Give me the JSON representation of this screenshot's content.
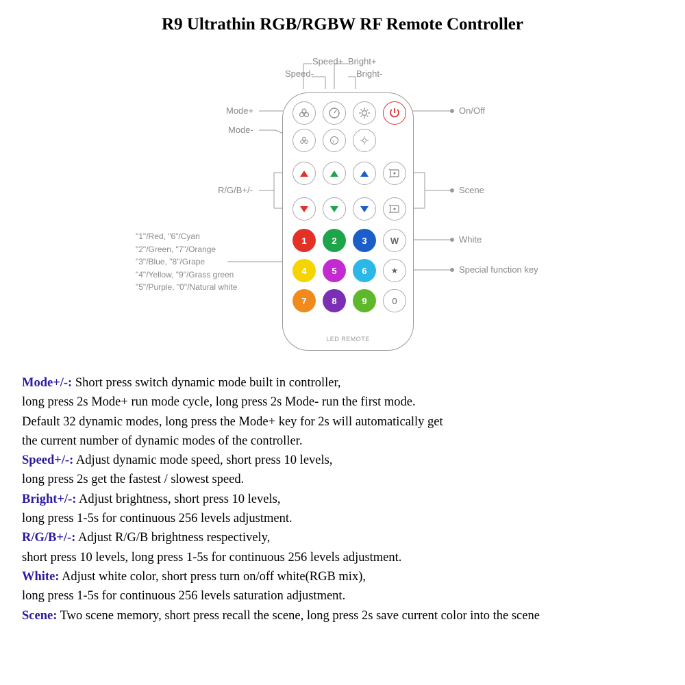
{
  "title": "R9 Ultrathin RGB/RGBW RF Remote Controller",
  "remote_footer": "LED REMOTE",
  "annotations": {
    "speed_plus": "Speed+",
    "speed_minus": "Speed-",
    "bright_plus": "Bright+",
    "bright_minus": "Bright-",
    "mode_plus": "Mode+",
    "mode_minus": "Mode-",
    "rgb": "R/G/B+/-",
    "on_off": "On/Off",
    "scene": "Scene",
    "white": "White",
    "special": "Special function key"
  },
  "color_legend": [
    "\"1\"/Red,    \"6\"/Cyan",
    "\"2\"/Green, \"7\"/Orange",
    "\"3\"/Blue,   \"8\"/Grape",
    "\"4\"/Yellow, \"9\"/Grass green",
    "\"5\"/Purple, \"0\"/Natural white"
  ],
  "color_buttons": [
    {
      "n": "1",
      "c": "#e33126"
    },
    {
      "n": "2",
      "c": "#1ea44a"
    },
    {
      "n": "3",
      "c": "#1a5fc9"
    },
    {
      "n": "4",
      "c": "#f5d400"
    },
    {
      "n": "5",
      "c": "#c22bd0"
    },
    {
      "n": "6",
      "c": "#2bb7e8"
    },
    {
      "n": "7",
      "c": "#f08a1d"
    },
    {
      "n": "8",
      "c": "#7a2fb5"
    },
    {
      "n": "9",
      "c": "#5fb82c"
    }
  ],
  "white_btn": "W",
  "star_btn": "★",
  "zero_btn": "0",
  "line_color": "#999999",
  "descriptions": [
    {
      "key": "Mode+/-:",
      "text": " Short press switch dynamic mode built in controller,",
      "cont": [
        "long press 2s Mode+ run mode cycle, long press 2s Mode- run the first mode.",
        "Default 32 dynamic modes, long press the Mode+ key for 2s will automatically get",
        "the current number of dynamic modes of the controller."
      ]
    },
    {
      "key": "Speed+/-:",
      "text": " Adjust dynamic mode speed, short press 10 levels,",
      "cont": [
        "long press 2s get the fastest / slowest speed."
      ]
    },
    {
      "key": "Bright+/-:",
      "text": " Adjust brightness, short press 10 levels,",
      "cont": [
        "long press 1-5s for continuous 256 levels adjustment."
      ]
    },
    {
      "key": "R/G/B+/-:",
      "text": " Adjust R/G/B brightness respectively,",
      "cont": [
        "short press 10 levels, long press 1-5s for continuous 256 levels adjustment."
      ]
    },
    {
      "key": "White:",
      "text": " Adjust white color, short press turn on/off white(RGB mix),",
      "cont": [
        "long press 1-5s for continuous 256 levels saturation adjustment."
      ]
    },
    {
      "key": "Scene:",
      "text": " Two scene memory, short press recall the scene, long press 2s save current color into the scene",
      "cont": []
    }
  ]
}
